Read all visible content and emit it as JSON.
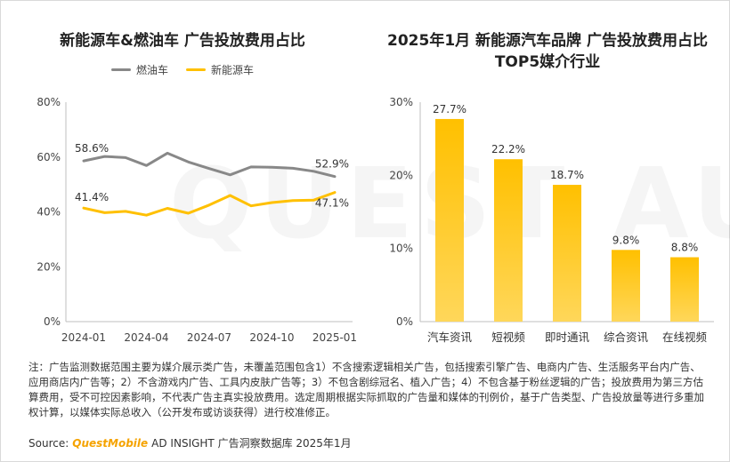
{
  "brand": {
    "logo_text": "QUESTMOBILE",
    "watermark_text": "QUEST AUTO"
  },
  "chart_data": [
    {
      "type": "line",
      "title": "新能源车&燃油车 广告投放费用占比",
      "xlabel": "",
      "ylabel": "",
      "ylim": [
        0,
        80
      ],
      "y_ticks": [
        "0%",
        "20%",
        "40%",
        "60%",
        "80%"
      ],
      "x_ticks": [
        "2024-01",
        "2024-04",
        "2024-07",
        "2024-10",
        "2025-01"
      ],
      "x": [
        "2024-01",
        "2024-02",
        "2024-03",
        "2024-04",
        "2024-05",
        "2024-06",
        "2024-07",
        "2024-08",
        "2024-09",
        "2024-10",
        "2024-11",
        "2024-12",
        "2025-01"
      ],
      "legend_position": "top-center",
      "grid": false,
      "series": [
        {
          "name": "燃油车",
          "color": "#888888",
          "values": [
            58.6,
            60.2,
            59.8,
            56.9,
            61.4,
            58.2,
            55.8,
            53.5,
            56.4,
            56.3,
            55.9,
            54.8,
            52.9
          ],
          "start_label": "58.6%",
          "end_label": "52.9%"
        },
        {
          "name": "新能源车",
          "color": "#FFC000",
          "values": [
            41.4,
            39.7,
            40.2,
            38.8,
            41.3,
            39.5,
            42.5,
            46.0,
            42.2,
            43.4,
            44.1,
            44.3,
            47.1
          ],
          "start_label": "41.4%",
          "end_label": "47.1%"
        }
      ]
    },
    {
      "type": "bar",
      "title": "2025年1月 新能源汽车品牌 广告投放费用占比TOP5媒介行业",
      "categories": [
        "汽车资讯",
        "短视频",
        "即时通讯",
        "综合资讯",
        "在线视频"
      ],
      "values": [
        27.7,
        22.2,
        18.7,
        9.8,
        8.8
      ],
      "value_labels": [
        "27.7%",
        "22.2%",
        "18.7%",
        "9.8%",
        "8.8%"
      ],
      "ylim": [
        0,
        30
      ],
      "y_ticks": [
        "0%",
        "10%",
        "20%",
        "30%"
      ],
      "xlabel": "",
      "ylabel": "",
      "grid": false,
      "color": "#FFC000"
    }
  ],
  "note": "注：广告监测数据范围主要为媒介展示类广告，未覆盖范围包含1）不含搜索逻辑相关广告，包括搜索引擎广告、电商内广告、生活服务平台内广告、应用商店内广告等；2）不含游戏内广告、工具内皮肤广告等；3）不包含剧综冠名、植入广告；4）不包含基于粉丝逻辑的广告；投放费用为第三方估算费用，受不可控因素影响，不代表广告主真实投放费用。选定周期根据实际抓取的广告量和媒体的刊例价，基于广告类型、广告投放量等进行多重加权计算，以媒体实际总收入（公开发布或访谈获得）进行校准修正。",
  "source": {
    "prefix": "Source:",
    "brand": "QuestMobile",
    "text": "AD INSIGHT 广告洞察数据库 2025年1月"
  }
}
